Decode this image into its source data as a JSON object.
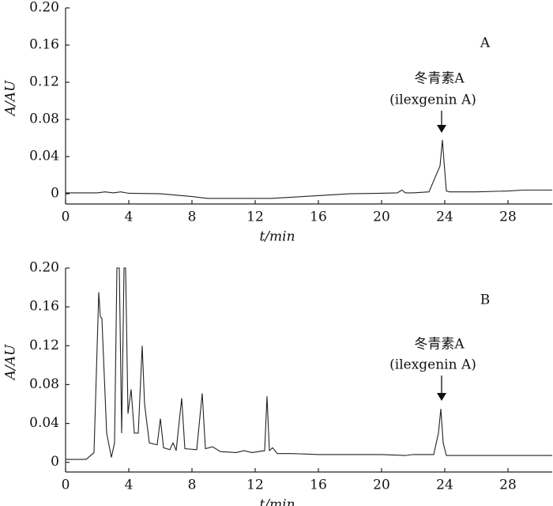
{
  "chart_data": [
    {
      "type": "line",
      "panel_label": "A",
      "compound": "冬青素A",
      "compound_en": "(ilexgenin A)",
      "xlabel": "t/min",
      "ylabel": "A/AU",
      "color": "#222222",
      "xlim": [
        0,
        30.8
      ],
      "ylim": [
        -0.011,
        0.2
      ],
      "xticks": [
        0,
        4,
        8,
        12,
        16,
        20,
        24,
        28
      ],
      "yticks": [
        0,
        0.04,
        0.08,
        0.12,
        0.16,
        {
          "value": 0.2,
          "label": "0.20"
        }
      ],
      "x": [
        0,
        2,
        2.5,
        3,
        3.5,
        4,
        6,
        8,
        9,
        10,
        12,
        13,
        14,
        16,
        18,
        20,
        21,
        21.3,
        21.5,
        22,
        23,
        23.7,
        23.85,
        23.95,
        24.1,
        24.3,
        24.6,
        26,
        28,
        29,
        30.8
      ],
      "values": [
        0.001,
        0.001,
        0.002,
        0.001,
        0.002,
        0.0005,
        0,
        -0.003,
        -0.005,
        -0.005,
        -0.005,
        -0.005,
        -0.004,
        -0.002,
        0,
        0.0005,
        0.001,
        0.004,
        0.001,
        0.001,
        0.002,
        0.03,
        0.058,
        0.035,
        0.003,
        0.002,
        0.002,
        0.002,
        0.003,
        0.004,
        0.004
      ]
    },
    {
      "type": "line",
      "panel_label": "B",
      "compound": "冬青素A",
      "compound_en": "(ilexgenin A)",
      "xlabel": "t/min",
      "ylabel": "A/AU",
      "color": "#222222",
      "xlim": [
        0,
        30.8
      ],
      "ylim": [
        -0.01,
        0.2
      ],
      "xticks": [
        0,
        4,
        8,
        12,
        16,
        20,
        24,
        28
      ],
      "yticks": [
        0,
        0.04,
        0.08,
        0.12,
        0.16,
        {
          "value": 0.2,
          "label": "0.20"
        }
      ],
      "x": [
        0,
        1.3,
        1.8,
        2.1,
        2.2,
        2.3,
        2.6,
        2.9,
        3.1,
        3.25,
        3.4,
        3.55,
        3.7,
        3.8,
        3.95,
        4.15,
        4.35,
        4.6,
        4.85,
        5.0,
        5.3,
        5.8,
        6.0,
        6.2,
        6.6,
        6.8,
        7.0,
        7.35,
        7.55,
        8.3,
        8.65,
        8.85,
        9.3,
        9.8,
        10.8,
        11.3,
        11.8,
        12.6,
        12.75,
        12.9,
        13.1,
        13.4,
        14.3,
        16,
        18,
        20,
        21.5,
        22,
        23.3,
        23.6,
        23.75,
        23.9,
        24.1,
        26,
        28,
        30.8
      ],
      "values": [
        0.003,
        0.003,
        0.01,
        0.175,
        0.15,
        0.148,
        0.03,
        0.005,
        0.02,
        0.2,
        0.2,
        0.03,
        0.2,
        0.2,
        0.05,
        0.075,
        0.03,
        0.03,
        0.12,
        0.06,
        0.02,
        0.018,
        0.045,
        0.015,
        0.013,
        0.02,
        0.012,
        0.066,
        0.014,
        0.013,
        0.071,
        0.014,
        0.016,
        0.011,
        0.01,
        0.012,
        0.01,
        0.012,
        0.068,
        0.012,
        0.015,
        0.009,
        0.009,
        0.008,
        0.008,
        0.008,
        0.007,
        0.008,
        0.008,
        0.03,
        0.055,
        0.02,
        0.007,
        0.007,
        0.007,
        0.007
      ]
    }
  ]
}
